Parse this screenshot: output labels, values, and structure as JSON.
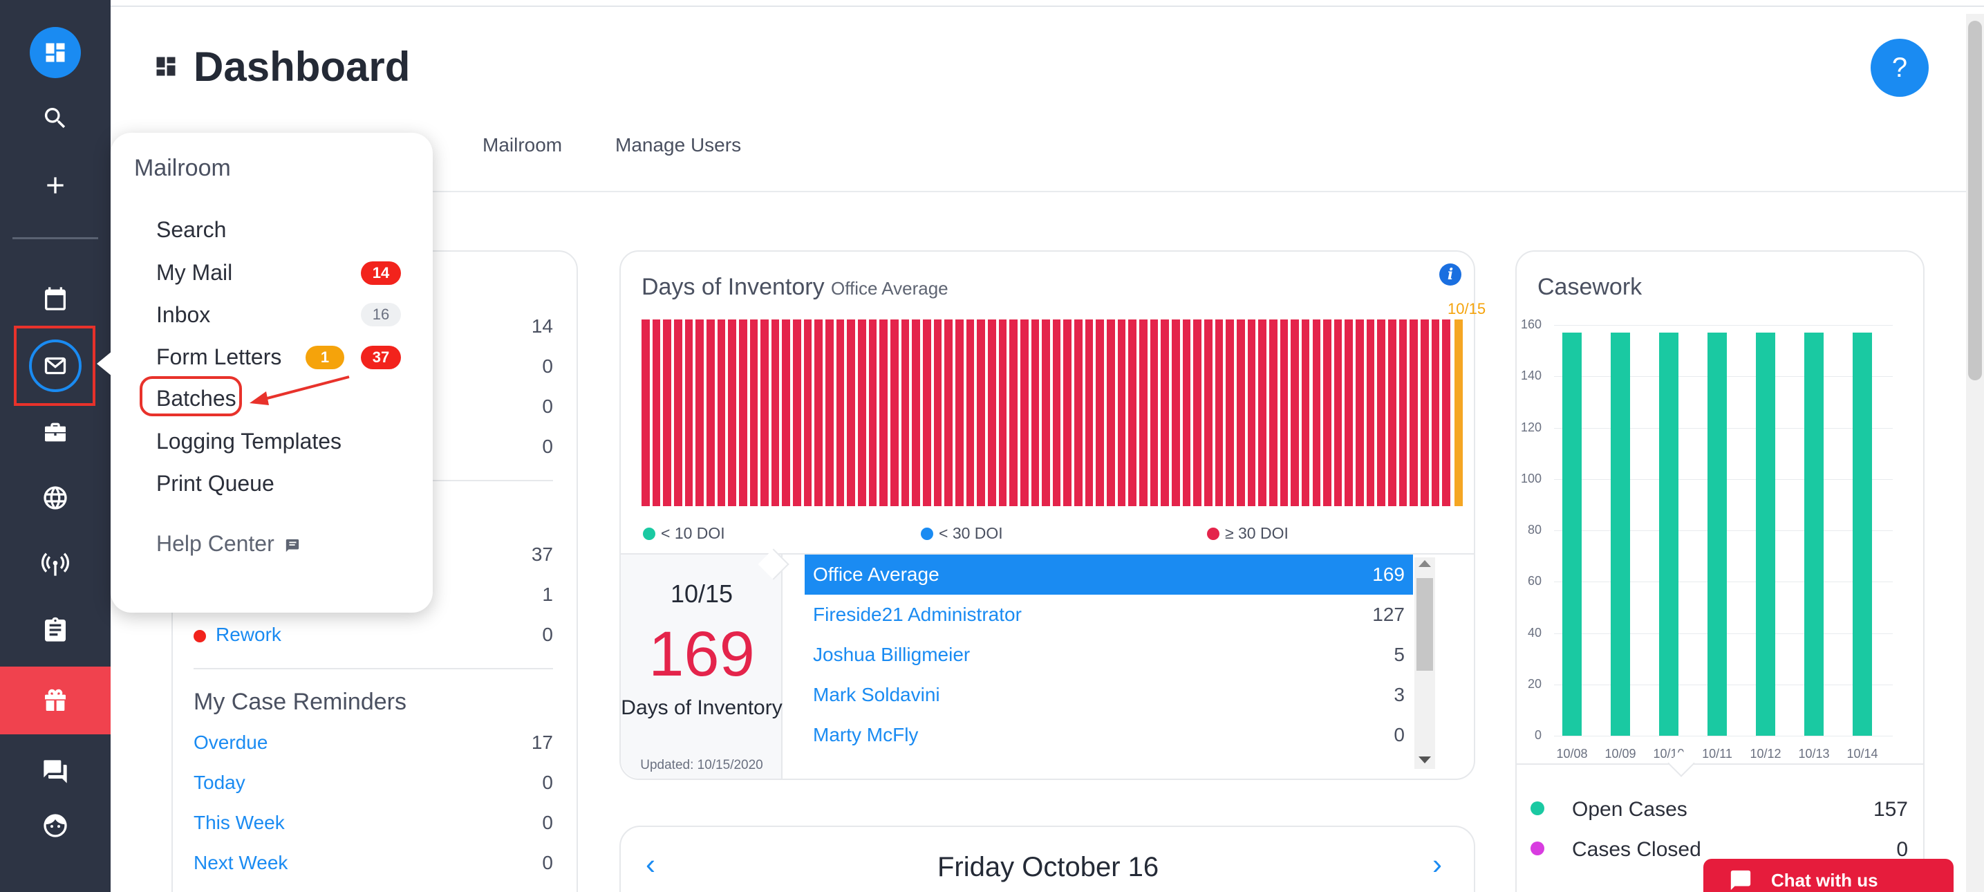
{
  "header": {
    "title": "Dashboard",
    "help_label": "?"
  },
  "tabs": [
    "Mailroom",
    "Manage Users"
  ],
  "mailroom_menu": {
    "title": "Mailroom",
    "items": [
      {
        "label": "Search"
      },
      {
        "label": "My Mail",
        "badge_red": "14"
      },
      {
        "label": "Inbox",
        "badge_grey": "16"
      },
      {
        "label": "Form Letters",
        "badge_orange": "1",
        "badge_red": "37"
      },
      {
        "label": "Batches"
      },
      {
        "label": "Logging Templates"
      },
      {
        "label": "Print Queue"
      }
    ],
    "help_center": "Help Center"
  },
  "left_card": {
    "top_values": [
      "14",
      "0",
      "0",
      "0"
    ],
    "mid_values": [
      "37",
      "1"
    ],
    "rework": {
      "label": "Rework",
      "value": "0"
    },
    "reminders_title": "My Case Reminders",
    "reminders": [
      {
        "label": "Overdue",
        "value": "17"
      },
      {
        "label": "Today",
        "value": "0"
      },
      {
        "label": "This Week",
        "value": "0"
      },
      {
        "label": "Next Week",
        "value": "0"
      }
    ]
  },
  "inventory": {
    "title": "Days of Inventory",
    "subtitle": "Office Average",
    "today_marker": "10/15",
    "legend": [
      "< 10 DOI",
      "< 30 DOI",
      "≥ 30 DOI"
    ],
    "colors": {
      "lt10": "#1ac9a2",
      "lt30": "#1a8bf2",
      "gte30": "#e4244b",
      "today": "#f5a623"
    },
    "date": "10/15",
    "value": "169",
    "label": "Days of Inventory",
    "updated": "Updated: 10/15/2020",
    "list": [
      {
        "name": "Office Average",
        "value": "169",
        "selected": true
      },
      {
        "name": "Fireside21 Administrator",
        "value": "127"
      },
      {
        "name": "Joshua Billigmeier",
        "value": "5"
      },
      {
        "name": "Mark Soldavini",
        "value": "3"
      },
      {
        "name": "Marty McFly",
        "value": "0"
      }
    ]
  },
  "calendar": {
    "date": "Friday October 16",
    "prev": "‹",
    "next": "›"
  },
  "chart_data": {
    "type": "bar",
    "title": "Casework",
    "categories": [
      "10/08",
      "10/09",
      "10/10",
      "10/11",
      "10/12",
      "10/13",
      "10/14"
    ],
    "series": [
      {
        "name": "Open Cases",
        "values": [
          157,
          157,
          157,
          157,
          157,
          157,
          157
        ]
      }
    ],
    "ylim": [
      0,
      160
    ],
    "yticks": [
      0,
      20,
      40,
      60,
      80,
      100,
      120,
      140,
      160
    ],
    "grid": true,
    "legend": [
      {
        "label": "Open Cases",
        "value": "157",
        "color": "#1ac9a2"
      },
      {
        "label": "Cases Closed",
        "value": "0",
        "color": "#d83ce0"
      }
    ]
  },
  "chat": {
    "label": "Chat with us"
  }
}
